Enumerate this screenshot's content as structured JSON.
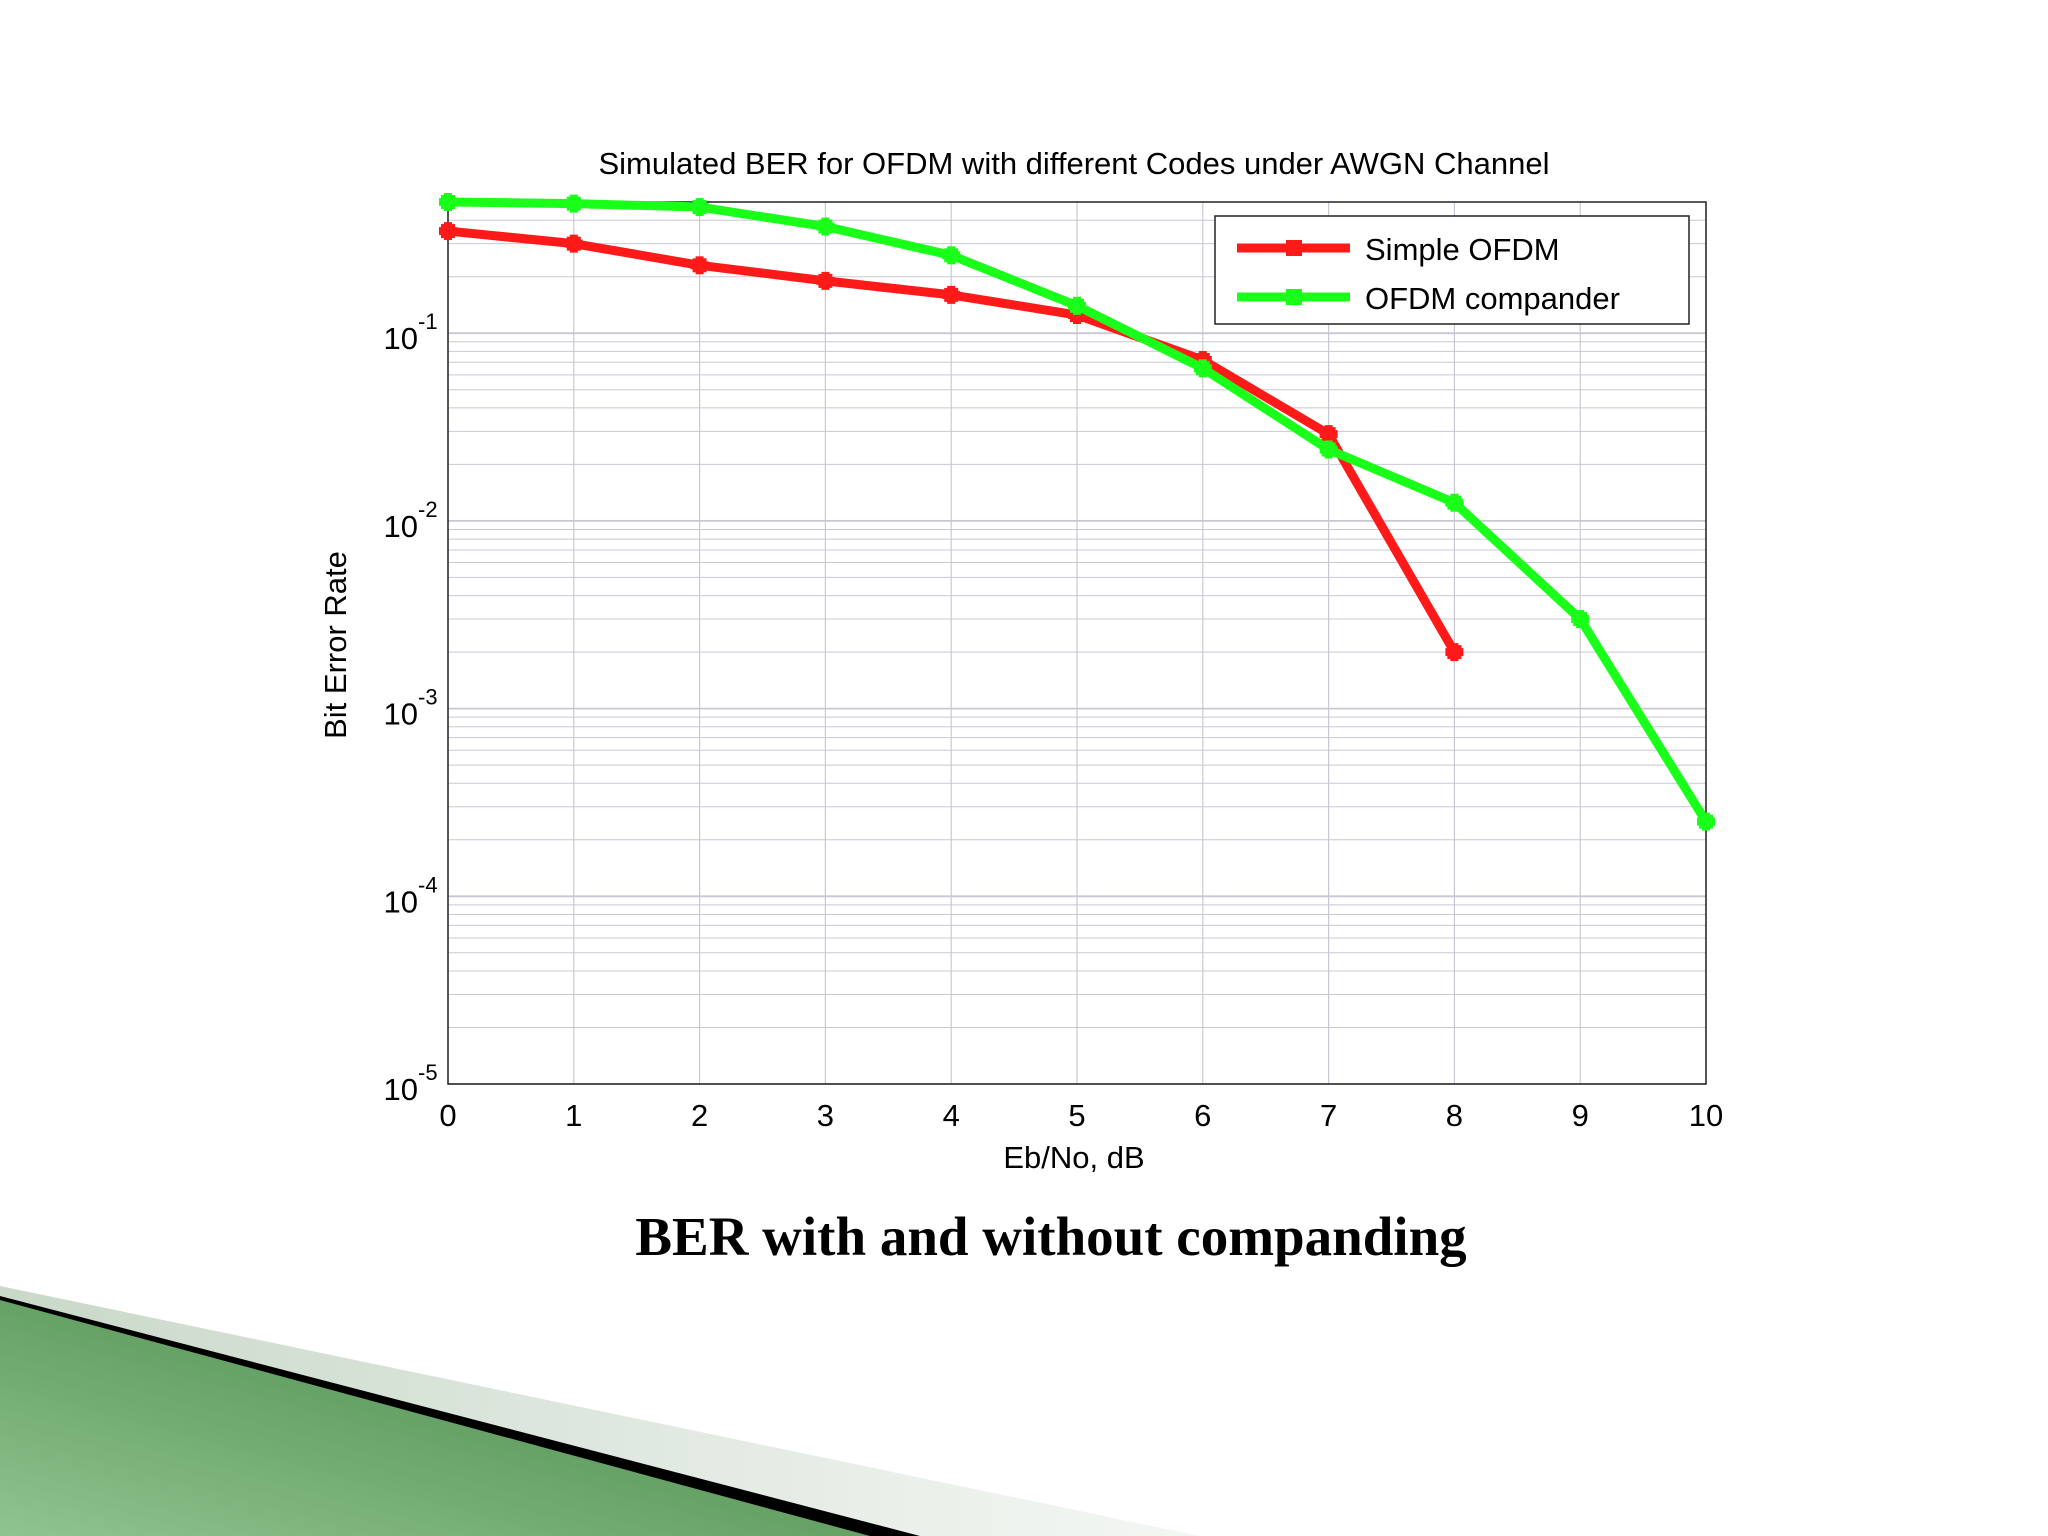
{
  "caption": "BER with and without companding",
  "colors": {
    "simple_ofdm": "#ff1a1a",
    "ofdm_compander": "#1aff1a",
    "grid": "#c8c8d4",
    "banner_green": "#5c9a5c",
    "banner_black": "#000000",
    "banner_light": "#e2eae2"
  },
  "chart_data": {
    "type": "line",
    "title": "Simulated BER for OFDM with different Codes under AWGN Channel",
    "xlabel": "Eb/No, dB",
    "ylabel": "Bit Error Rate",
    "xlim": [
      0,
      10
    ],
    "ylim": [
      1e-05,
      0.5
    ],
    "yscale": "log",
    "grid": true,
    "legend_position": "top-right",
    "x_ticks": [
      "0",
      "1",
      "2",
      "3",
      "4",
      "5",
      "6",
      "7",
      "8",
      "9",
      "10"
    ],
    "y_ticks": [
      {
        "base": "10",
        "exp": "-1",
        "value": 0.1
      },
      {
        "base": "10",
        "exp": "-2",
        "value": 0.01
      },
      {
        "base": "10",
        "exp": "-3",
        "value": 0.001
      },
      {
        "base": "10",
        "exp": "-4",
        "value": 0.0001
      },
      {
        "base": "10",
        "exp": "-5",
        "value": 1e-05
      }
    ],
    "series": [
      {
        "name": "Simple OFDM",
        "color": "#ff1a1a",
        "x": [
          0,
          1,
          2,
          3,
          4,
          5,
          6,
          7,
          8
        ],
        "y": [
          0.35,
          0.3,
          0.23,
          0.19,
          0.16,
          0.125,
          0.072,
          0.029,
          0.002
        ]
      },
      {
        "name": "OFDM compander",
        "color": "#1aff1a",
        "x": [
          0,
          1,
          2,
          3,
          4,
          5,
          6,
          7,
          8,
          9,
          10
        ],
        "y": [
          0.5,
          0.49,
          0.47,
          0.37,
          0.26,
          0.14,
          0.065,
          0.024,
          0.0125,
          0.003,
          0.00025
        ]
      }
    ]
  }
}
